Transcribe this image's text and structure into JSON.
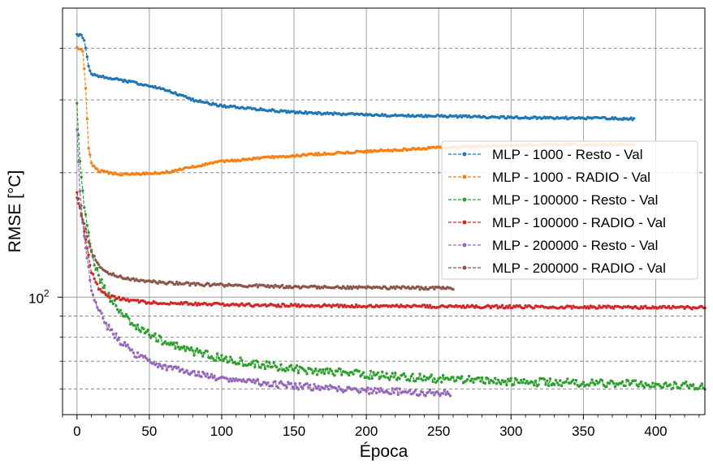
{
  "chart_data": {
    "type": "line",
    "xlabel": "Época",
    "ylabel": "RMSE [°C]",
    "y_scale": "log",
    "xlim": [
      -10,
      434
    ],
    "ylim": [
      52,
      500
    ],
    "x_ticks": [
      0,
      50,
      100,
      150,
      200,
      250,
      300,
      350,
      400
    ],
    "x_tick_labels": [
      "0",
      "50",
      "100",
      "150",
      "200",
      "250",
      "300",
      "350",
      "400"
    ],
    "y_major_ticks": [
      100
    ],
    "y_major_tick_labels": [
      "10",
      "2"
    ],
    "y_minor_gridlines": [
      60,
      70,
      80,
      90,
      200,
      300,
      400
    ],
    "grid": true,
    "legend_position": "center-right",
    "series": [
      {
        "name": "MLP - 1000 - Resto - Val",
        "color": "#1f77b4",
        "x": [
          0,
          3,
          5,
          8,
          10,
          20,
          40,
          60,
          80,
          100,
          150,
          200,
          250,
          300,
          350,
          385
        ],
        "y": [
          430,
          430,
          420,
          360,
          345,
          340,
          330,
          318,
          300,
          290,
          280,
          276,
          274,
          272,
          271,
          270
        ]
      },
      {
        "name": "MLP - 1000 - RADIO - Val",
        "color": "#ff7f0e",
        "x": [
          0,
          4,
          6,
          8,
          10,
          15,
          30,
          60,
          100,
          150,
          200,
          250,
          300,
          350,
          385
        ],
        "y": [
          400,
          395,
          320,
          230,
          210,
          202,
          198,
          200,
          213,
          220,
          225,
          230,
          233,
          234,
          234
        ]
      },
      {
        "name": "MLP - 100000 - Resto - Val",
        "color": "#2ca02c",
        "x": [
          0,
          2,
          5,
          10,
          15,
          20,
          30,
          40,
          60,
          80,
          100,
          150,
          200,
          250,
          300,
          350,
          400,
          434
        ],
        "y": [
          290,
          215,
          165,
          128,
          112,
          103,
          92,
          85,
          78,
          74,
          71,
          67,
          65,
          63.5,
          62.5,
          62,
          61.5,
          61
        ]
      },
      {
        "name": "MLP - 100000 - RADIO - Val",
        "color": "#d62728",
        "x": [
          0,
          5,
          10,
          15,
          20,
          30,
          50,
          100,
          150,
          200,
          250,
          300,
          350,
          400,
          434
        ],
        "y": [
          180,
          145,
          115,
          105,
          101,
          99,
          97,
          96,
          95.5,
          95.2,
          95,
          94.8,
          94.6,
          94.5,
          94.3
        ]
      },
      {
        "name": "MLP - 200000 - Resto - Val",
        "color": "#9467bd",
        "x": [
          0,
          2,
          5,
          10,
          15,
          20,
          30,
          40,
          50,
          60,
          80,
          100,
          150,
          200,
          258
        ],
        "y": [
          250,
          180,
          140,
          105,
          93,
          86,
          78,
          73,
          70,
          68,
          65.5,
          63.5,
          61,
          59.5,
          58.5
        ]
      },
      {
        "name": "MLP - 200000 - RADIO - Val",
        "color": "#8c564b",
        "x": [
          0,
          5,
          10,
          15,
          20,
          30,
          40,
          50,
          60,
          80,
          100,
          150,
          200,
          260
        ],
        "y": [
          175,
          150,
          128,
          120,
          115,
          112,
          110,
          109,
          108.5,
          107.5,
          107,
          106,
          105.5,
          105
        ]
      }
    ]
  }
}
